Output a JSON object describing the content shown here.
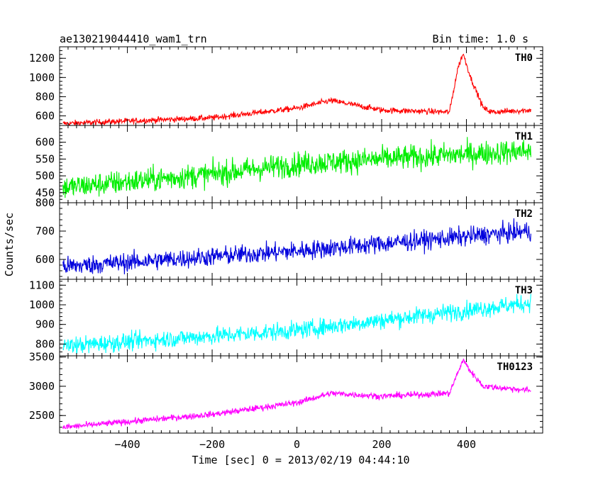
{
  "header": {
    "left": "ae130219044410_wam1_trn",
    "right": "Bin time: 1.0 s"
  },
  "chart_data": {
    "type": "line",
    "xlabel": "Time [sec] 0 = 2013/02/19 04:44:10",
    "ylabel": "Counts/sec",
    "xlim": [
      -560,
      580
    ],
    "xticks": [
      -400,
      -200,
      0,
      200,
      400
    ],
    "xtick_labels": [
      "−400",
      "−200",
      "0",
      "200",
      "400"
    ],
    "panels": [
      {
        "name": "TH0",
        "color": "#ff0000",
        "ylim": [
          500,
          1320
        ],
        "yticks": [
          600,
          800,
          1000,
          1200
        ],
        "ytick_labels": [
          "600",
          "800",
          "1000",
          "1200"
        ],
        "noise": 22,
        "profile": [
          [
            -550,
            520
          ],
          [
            -200,
            580
          ],
          [
            0,
            680
          ],
          [
            80,
            760
          ],
          [
            200,
            660
          ],
          [
            360,
            640
          ],
          [
            380,
            1100
          ],
          [
            392,
            1250
          ],
          [
            410,
            1000
          ],
          [
            440,
            680
          ],
          [
            460,
            640
          ],
          [
            550,
            660
          ]
        ]
      },
      {
        "name": "TH1",
        "color": "#00ee00",
        "ylim": [
          420,
          650
        ],
        "yticks": [
          450,
          500,
          550,
          600
        ],
        "ytick_labels": [
          "450",
          "500",
          "550",
          "600"
        ],
        "noise": 26,
        "profile": [
          [
            -550,
            465
          ],
          [
            -200,
            505
          ],
          [
            0,
            535
          ],
          [
            200,
            550
          ],
          [
            550,
            575
          ]
        ]
      },
      {
        "name": "TH2",
        "color": "#0000dd",
        "ylim": [
          530,
          800
        ],
        "yticks": [
          600,
          700,
          800
        ],
        "ytick_labels": [
          "600",
          "700",
          "800"
        ],
        "noise": 24,
        "profile": [
          [
            -550,
            575
          ],
          [
            0,
            630
          ],
          [
            550,
            700
          ]
        ]
      },
      {
        "name": "TH3",
        "color": "#00ffff",
        "ylim": [
          740,
          1130
        ],
        "yticks": [
          800,
          900,
          1000,
          1100
        ],
        "ytick_labels": [
          "800",
          "900",
          "1000",
          "1100"
        ],
        "noise": 32,
        "profile": [
          [
            -550,
            790
          ],
          [
            0,
            870
          ],
          [
            550,
            1010
          ]
        ]
      },
      {
        "name": "TH0123",
        "color": "#ff00ff",
        "ylim": [
          2200,
          3520
        ],
        "yticks": [
          2500,
          3000,
          3500
        ],
        "ytick_labels": [
          "2500",
          "3000",
          "3500"
        ],
        "noise": 38,
        "profile": [
          [
            -550,
            2300
          ],
          [
            -200,
            2520
          ],
          [
            0,
            2720
          ],
          [
            80,
            2880
          ],
          [
            200,
            2830
          ],
          [
            360,
            2880
          ],
          [
            378,
            3200
          ],
          [
            392,
            3450
          ],
          [
            410,
            3250
          ],
          [
            440,
            3000
          ],
          [
            550,
            2930
          ]
        ]
      }
    ]
  }
}
